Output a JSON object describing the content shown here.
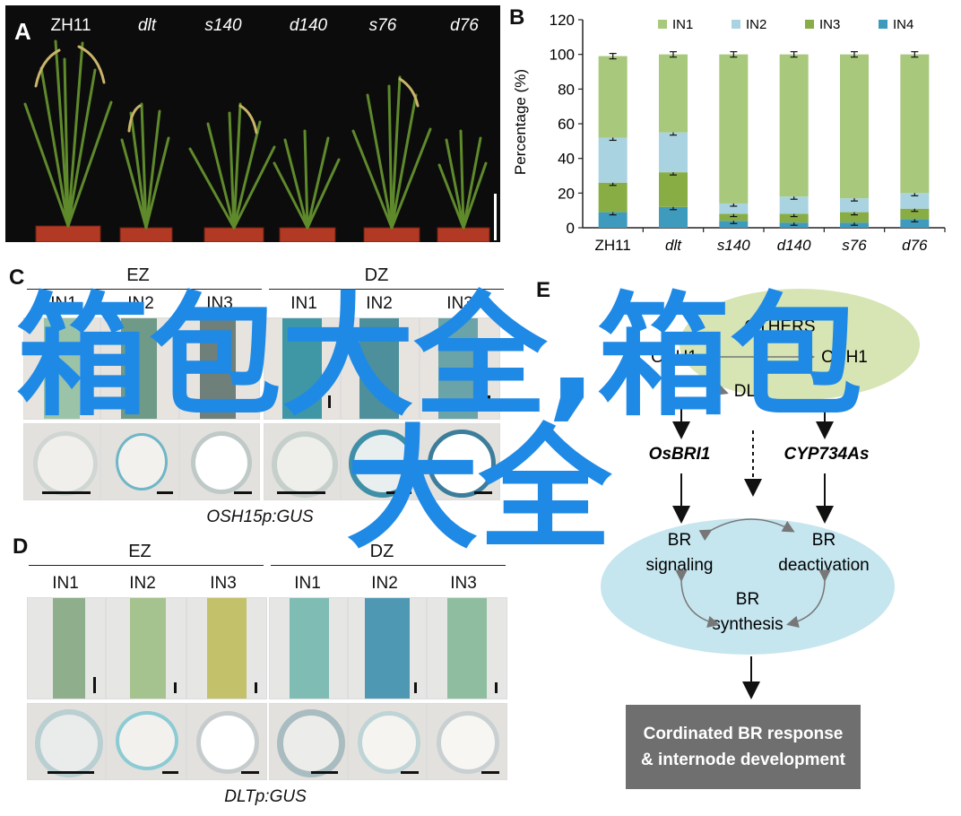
{
  "panel_letters": {
    "a": "A",
    "b": "B",
    "c": "C",
    "d": "D",
    "e": "E"
  },
  "panel_a": {
    "genotypes": [
      "ZH11",
      "dlt",
      "s140",
      "d140",
      "s76",
      "d76"
    ]
  },
  "chart_data": {
    "type": "bar",
    "stacked": true,
    "categories": [
      "ZH11",
      "dlt",
      "s140",
      "d140",
      "s76",
      "d76"
    ],
    "series": [
      {
        "name": "IN1",
        "color": "#a8c87c",
        "values": [
          47,
          45,
          86,
          82,
          83,
          80
        ]
      },
      {
        "name": "IN2",
        "color": "#a9d3e0",
        "values": [
          26,
          23,
          6,
          10,
          8,
          9
        ]
      },
      {
        "name": "IN3",
        "color": "#88ad44",
        "values": [
          17,
          20,
          4,
          5,
          6,
          6
        ]
      },
      {
        "name": "IN4",
        "color": "#3f9bbd",
        "values": [
          9,
          12,
          4,
          3,
          3,
          5
        ]
      }
    ],
    "ylabel": "Percentage (%)",
    "ylim": [
      0,
      120
    ],
    "yticks": [
      0,
      20,
      40,
      60,
      80,
      100,
      120
    ],
    "legend": "top",
    "grid": false
  },
  "panel_c": {
    "groups": [
      "EZ",
      "DZ"
    ],
    "internodes": [
      "IN1",
      "IN2",
      "IN3",
      "IN1",
      "IN2",
      "IN3"
    ],
    "caption": "OSH15p:GUS"
  },
  "panel_d": {
    "groups": [
      "EZ",
      "DZ"
    ],
    "internodes": [
      "IN1",
      "IN2",
      "IN3",
      "IN1",
      "IN2",
      "IN3"
    ],
    "caption": "DLTp:GUS"
  },
  "panel_e": {
    "oval_labels": [
      "OTHERS",
      "OSH1",
      "OSH1",
      "DLT"
    ],
    "gene_left": "OsBRI1",
    "gene_right": "CYP734As",
    "br_signaling": [
      "BR",
      "signaling"
    ],
    "br_deactivation": [
      "BR",
      "deactivation"
    ],
    "br_synthesis": [
      "BR",
      "synthesis"
    ],
    "response": [
      "Cordinated BR response",
      "& internode development"
    ]
  },
  "watermark": {
    "line1": "箱包大全,箱包",
    "line2": "大全",
    "color": "#1f8ae6"
  }
}
